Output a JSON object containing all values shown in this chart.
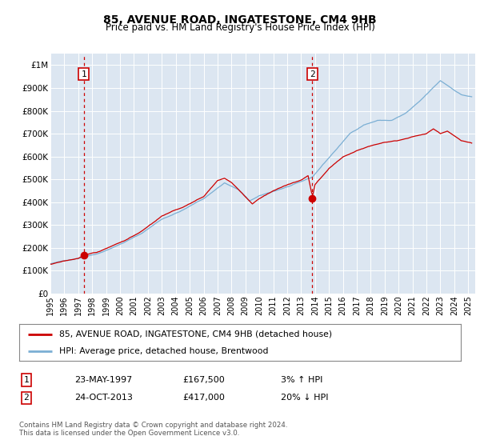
{
  "title": "85, AVENUE ROAD, INGATESTONE, CM4 9HB",
  "subtitle": "Price paid vs. HM Land Registry's House Price Index (HPI)",
  "plot_bg_color": "#dce6f1",
  "ylim": [
    0,
    1050000
  ],
  "yticks": [
    0,
    100000,
    200000,
    300000,
    400000,
    500000,
    600000,
    700000,
    800000,
    900000,
    1000000
  ],
  "ytick_labels": [
    "£0",
    "£100K",
    "£200K",
    "£300K",
    "£400K",
    "£500K",
    "£600K",
    "£700K",
    "£800K",
    "£900K",
    "£1M"
  ],
  "xlim_start": 1995.0,
  "xlim_end": 2025.5,
  "xticks": [
    1995,
    1996,
    1997,
    1998,
    1999,
    2000,
    2001,
    2002,
    2003,
    2004,
    2005,
    2006,
    2007,
    2008,
    2009,
    2010,
    2011,
    2012,
    2013,
    2014,
    2015,
    2016,
    2017,
    2018,
    2019,
    2020,
    2021,
    2022,
    2023,
    2024,
    2025
  ],
  "hpi_color": "#7bafd4",
  "price_color": "#cc0000",
  "dashed_line_color": "#cc0000",
  "marker_color": "#cc0000",
  "sale1_x": 1997.39,
  "sale1_y": 167500,
  "sale2_x": 2013.81,
  "sale2_y": 417000,
  "legend_label1": "85, AVENUE ROAD, INGATESTONE, CM4 9HB (detached house)",
  "legend_label2": "HPI: Average price, detached house, Brentwood",
  "annotation1_label": "1",
  "annotation2_label": "2",
  "info1_num": "1",
  "info1_date": "23-MAY-1997",
  "info1_price": "£167,500",
  "info1_hpi": "3% ↑ HPI",
  "info2_num": "2",
  "info2_date": "24-OCT-2013",
  "info2_price": "£417,000",
  "info2_hpi": "20% ↓ HPI",
  "footer": "Contains HM Land Registry data © Crown copyright and database right 2024.\nThis data is licensed under the Open Government Licence v3.0."
}
